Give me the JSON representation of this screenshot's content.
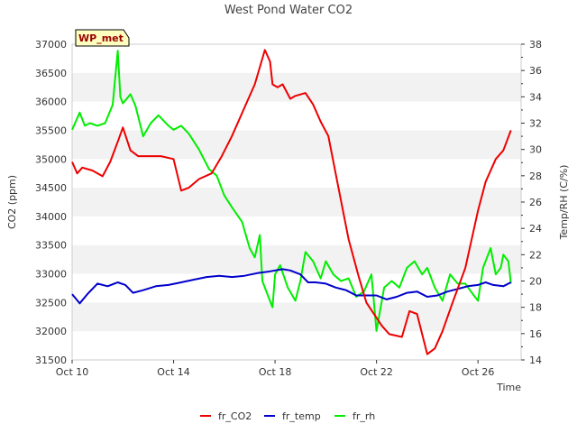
{
  "chart_data": {
    "type": "line",
    "title": "West Pond Water CO2",
    "badge": "WP_met",
    "xlabel": "Time",
    "ylabel_left": "CO2 (ppm)",
    "ylabel_right": "Temp/RH (C/%)",
    "x_axis": {
      "type": "days",
      "range_days": [
        10,
        27.7
      ],
      "tick_days": [
        10,
        14,
        18,
        22,
        26
      ],
      "tick_labels": [
        "Oct 10",
        "Oct 14",
        "Oct 18",
        "Oct 22",
        "Oct 26"
      ]
    },
    "y_left": {
      "range": [
        31500,
        37000
      ],
      "ticks": [
        31500,
        32000,
        32500,
        33000,
        33500,
        34000,
        34500,
        35000,
        35500,
        36000,
        36500,
        37000
      ]
    },
    "y_right": {
      "range": [
        14,
        38
      ],
      "ticks": [
        14,
        16,
        18,
        20,
        22,
        24,
        26,
        28,
        30,
        32,
        34,
        36,
        38
      ]
    },
    "legend_position": "bottom-center",
    "grid": "horizontal bands",
    "colors": {
      "fr_CO2": "#ee0000",
      "fr_temp": "#0000cc",
      "fr_rh": "#00ee00",
      "band": "#f2f2f2",
      "badge_bg": "#ffffc0",
      "badge_text": "#990000"
    },
    "series": [
      {
        "name": "fr_CO2",
        "axis": "left",
        "x": [
          10.0,
          10.2,
          10.4,
          10.8,
          11.2,
          11.5,
          11.8,
          12.0,
          12.3,
          12.6,
          13.0,
          13.5,
          14.0,
          14.3,
          14.6,
          15.0,
          15.5,
          15.9,
          16.3,
          16.8,
          17.2,
          17.4,
          17.6,
          17.8,
          17.9,
          18.1,
          18.3,
          18.6,
          18.8,
          19.2,
          19.5,
          19.8,
          20.1,
          20.5,
          20.9,
          21.3,
          21.6,
          21.9,
          22.2,
          22.5,
          23.0,
          23.3,
          23.6,
          24.0,
          24.3,
          24.6,
          25.0,
          25.5,
          26.0,
          26.3,
          26.7,
          27.0,
          27.3
        ],
        "y": [
          34950,
          34750,
          34850,
          34800,
          34700,
          34950,
          35300,
          35550,
          35150,
          35050,
          35050,
          35050,
          35000,
          34450,
          34500,
          34650,
          34750,
          35050,
          35400,
          35900,
          36300,
          36600,
          36900,
          36700,
          36300,
          36250,
          36300,
          36050,
          36100,
          36150,
          35950,
          35650,
          35400,
          34500,
          33600,
          32950,
          32500,
          32300,
          32100,
          31950,
          31900,
          32350,
          32300,
          31600,
          31700,
          32000,
          32500,
          33100,
          34100,
          34600,
          35000,
          35150,
          35500
        ]
      },
      {
        "name": "fr_temp",
        "axis": "right",
        "x": [
          10.0,
          10.3,
          10.6,
          11.0,
          11.4,
          11.8,
          12.1,
          12.4,
          12.8,
          13.3,
          13.8,
          14.3,
          14.8,
          15.3,
          15.8,
          16.3,
          16.8,
          17.3,
          17.7,
          18.0,
          18.3,
          18.6,
          19.0,
          19.3,
          19.6,
          20.0,
          20.4,
          20.8,
          21.2,
          21.6,
          22.0,
          22.4,
          22.8,
          23.2,
          23.6,
          24.0,
          24.4,
          24.8,
          25.2,
          25.6,
          26.0,
          26.3,
          26.6,
          27.0,
          27.3
        ],
        "y": [
          19.0,
          18.3,
          19.0,
          19.8,
          19.6,
          19.9,
          19.7,
          19.1,
          19.3,
          19.6,
          19.7,
          19.9,
          20.1,
          20.3,
          20.4,
          20.3,
          20.4,
          20.6,
          20.7,
          20.8,
          20.9,
          20.8,
          20.5,
          19.9,
          19.9,
          19.8,
          19.5,
          19.3,
          18.9,
          18.9,
          18.9,
          18.6,
          18.8,
          19.1,
          19.2,
          18.8,
          18.9,
          19.2,
          19.4,
          19.6,
          19.7,
          19.9,
          19.7,
          19.6,
          19.9
        ]
      },
      {
        "name": "fr_rh",
        "axis": "right",
        "x": [
          10.0,
          10.3,
          10.5,
          10.7,
          11.0,
          11.3,
          11.6,
          11.8,
          11.9,
          12.0,
          12.3,
          12.5,
          12.8,
          13.1,
          13.4,
          13.8,
          14.0,
          14.3,
          14.6,
          15.0,
          15.4,
          15.7,
          16.0,
          16.3,
          16.7,
          17.0,
          17.2,
          17.4,
          17.5,
          17.7,
          17.9,
          18.0,
          18.2,
          18.5,
          18.8,
          19.0,
          19.2,
          19.5,
          19.8,
          20.0,
          20.3,
          20.6,
          20.9,
          21.2,
          21.5,
          21.8,
          22.0,
          22.3,
          22.6,
          22.9,
          23.2,
          23.5,
          23.8,
          24.0,
          24.3,
          24.6,
          24.9,
          25.2,
          25.5,
          25.8,
          26.0,
          26.2,
          26.5,
          26.7,
          26.9,
          27.0,
          27.2,
          27.3
        ],
        "y": [
          31.5,
          32.8,
          31.8,
          32.0,
          31.8,
          32.0,
          33.4,
          37.5,
          34.0,
          33.5,
          34.2,
          33.3,
          31.0,
          32.0,
          32.6,
          31.8,
          31.5,
          31.8,
          31.2,
          30.0,
          28.5,
          28.0,
          26.5,
          25.6,
          24.5,
          22.5,
          21.8,
          23.5,
          20.0,
          19.0,
          18.0,
          20.5,
          21.2,
          19.5,
          18.5,
          20.0,
          22.2,
          21.5,
          20.2,
          21.5,
          20.5,
          20.0,
          20.2,
          18.8,
          19.2,
          20.5,
          16.2,
          19.5,
          20.0,
          19.5,
          21.0,
          21.5,
          20.5,
          21.0,
          19.5,
          18.5,
          20.5,
          19.8,
          19.8,
          19.0,
          18.5,
          21.0,
          22.5,
          20.5,
          21.0,
          22.0,
          21.5,
          19.8
        ]
      }
    ]
  }
}
